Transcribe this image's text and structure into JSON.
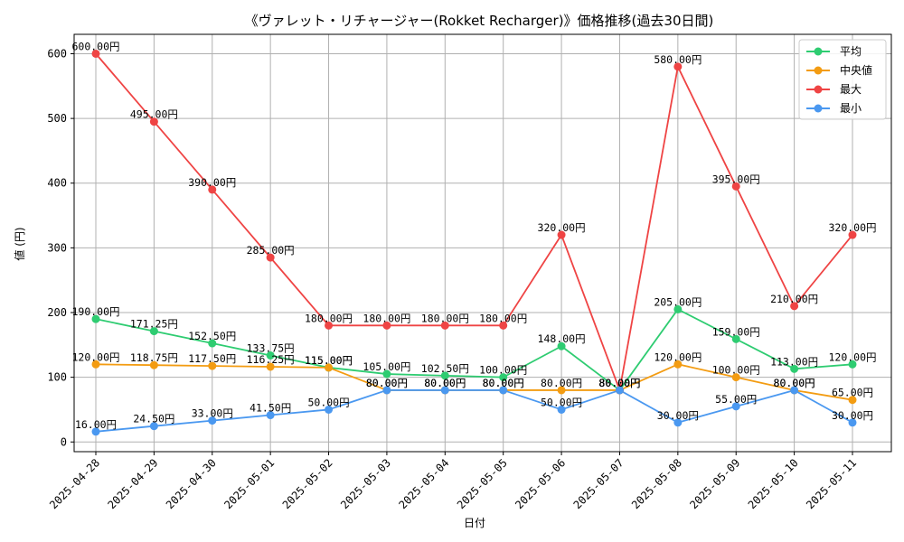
{
  "chart_data": {
    "type": "line",
    "title": "《ヴァレット・リチャージャー(Rokket Recharger)》価格推移(過去30日間)",
    "xlabel": "日付",
    "ylabel": "値 (円)",
    "value_suffix": "円",
    "categories": [
      "2025-04-28",
      "2025-04-29",
      "2025-04-30",
      "2025-05-01",
      "2025-05-02",
      "2025-05-03",
      "2025-05-04",
      "2025-05-05",
      "2025-05-06",
      "2025-05-07",
      "2025-05-08",
      "2025-05-09",
      "2025-05-10",
      "2025-05-11"
    ],
    "ylim": [
      -15,
      630
    ],
    "yticks": [
      0,
      100,
      200,
      300,
      400,
      500,
      600
    ],
    "grid": true,
    "legend_position": "top-right",
    "series": [
      {
        "name": "平均",
        "color": "#2ecc71",
        "values": [
          190.0,
          171.25,
          152.5,
          133.75,
          115.0,
          105.0,
          102.5,
          100.0,
          148.0,
          80.0,
          205.0,
          159.0,
          113.0,
          120.0
        ]
      },
      {
        "name": "中央値",
        "color": "#f39c12",
        "values": [
          120.0,
          118.75,
          117.5,
          116.25,
          115.0,
          80.0,
          80.0,
          80.0,
          80.0,
          80.0,
          120.0,
          100.0,
          80.0,
          65.0
        ]
      },
      {
        "name": "最大",
        "color": "#ef4444",
        "values": [
          600.0,
          495.0,
          390.0,
          285.0,
          180.0,
          180.0,
          180.0,
          180.0,
          320.0,
          80.0,
          580.0,
          395.0,
          210.0,
          320.0
        ]
      },
      {
        "name": "最小",
        "color": "#4a98f0",
        "values": [
          16.0,
          24.5,
          33.0,
          41.5,
          50.0,
          80.0,
          80.0,
          80.0,
          50.0,
          80.0,
          30.0,
          55.0,
          80.0,
          30.0
        ]
      }
    ]
  }
}
